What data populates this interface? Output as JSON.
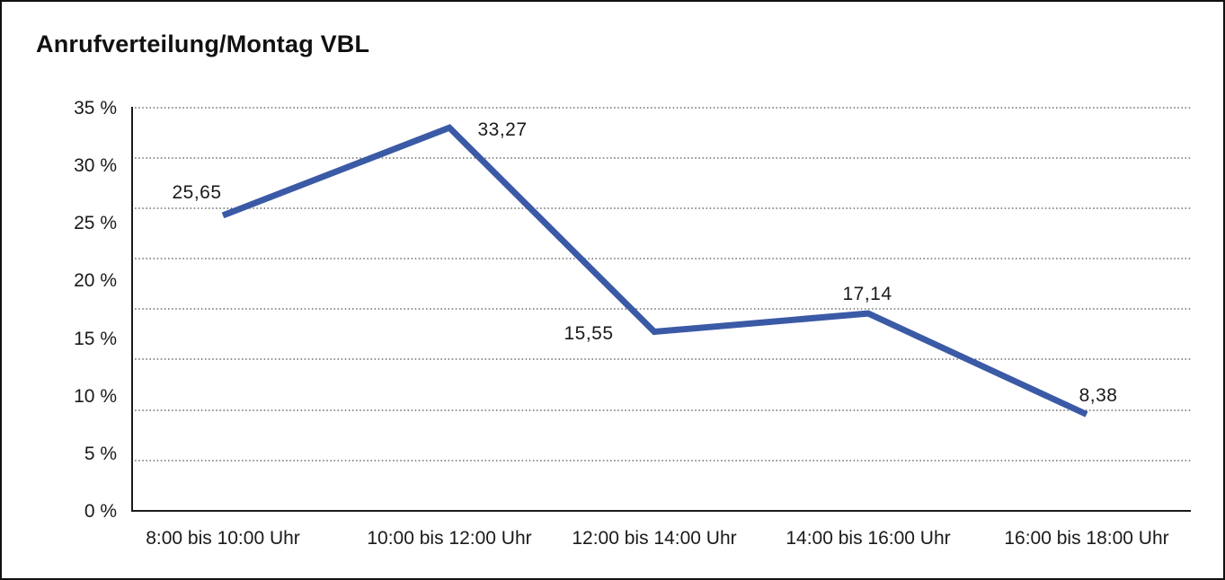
{
  "title": "Anrufverteilung/Montag VBL",
  "chart_data": {
    "type": "line",
    "title": "Anrufverteilung/Montag VBL",
    "categories": [
      "8:00 bis 10:00 Uhr",
      "10:00 bis 12:00 Uhr",
      "12:00 bis 14:00 Uhr",
      "14:00 bis 16:00 Uhr",
      "16:00 bis 18:00 Uhr"
    ],
    "values": [
      25.65,
      33.27,
      15.55,
      17.14,
      8.38
    ],
    "point_labels": [
      "25,65",
      "33,27",
      "15,55",
      "17,14",
      "8,38"
    ],
    "unit": "%",
    "y_tick_labels": [
      "35 %",
      "30 %",
      "25 %",
      "20 %",
      "15 %",
      "10 %",
      "5 %",
      "0 %"
    ],
    "ylim": [
      0,
      35
    ],
    "xlabel": "",
    "ylabel": "",
    "grid": "horizontal dotted lines",
    "legend": "none",
    "line_color": "#3b5aa6"
  }
}
